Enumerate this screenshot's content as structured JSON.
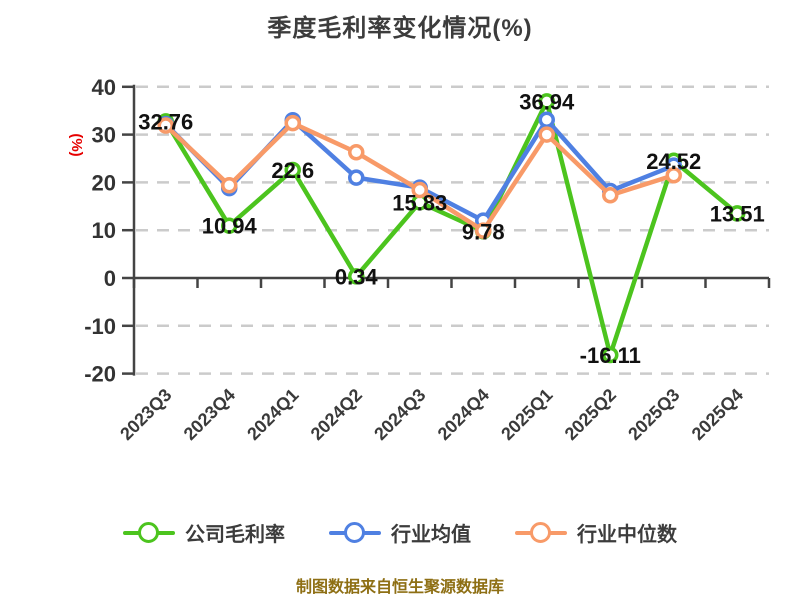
{
  "title": "季度毛利率变化情况(%)",
  "y_axis_unit_label": "(%)",
  "footer": "制图数据来自恒生聚源数据库",
  "colors": {
    "company": "#4cc41e",
    "industry_avg": "#4f80e2",
    "industry_median": "#f89a68",
    "grid": "#cbcbcb",
    "axis": "#444444",
    "tick_label": "#333333",
    "data_label": "#111111",
    "unit_label": "#e60000",
    "title": "#3c3c3c",
    "footer": "#8e6f14"
  },
  "chart_data": {
    "type": "line",
    "title": "季度毛利率变化情况(%)",
    "categories": [
      "2023Q3",
      "2023Q4",
      "2024Q1",
      "2024Q2",
      "2024Q3",
      "2024Q4",
      "2025Q1",
      "2025Q2",
      "2025Q3",
      "2025Q4"
    ],
    "y_ticks": [
      40,
      30,
      20,
      10,
      0,
      -10,
      -20
    ],
    "ylim": [
      -20,
      40
    ],
    "ylabel": "(%)",
    "grid": "horizontal-dashed",
    "legend_position": "bottom",
    "series": [
      {
        "name": "公司毛利率",
        "color": "#4cc41e",
        "labels_shown": true,
        "values": [
          32.76,
          10.94,
          22.6,
          0.34,
          15.83,
          9.78,
          36.94,
          -16.11,
          24.52,
          13.51
        ]
      },
      {
        "name": "行业均值",
        "color": "#4f80e2",
        "labels_shown": false,
        "values": [
          32.2,
          18.8,
          33.0,
          21.0,
          18.9,
          12.0,
          33.1,
          18.2,
          23.5,
          null
        ]
      },
      {
        "name": "行业中位数",
        "color": "#f89a68",
        "labels_shown": false,
        "values": [
          31.9,
          19.4,
          32.4,
          26.3,
          18.4,
          9.9,
          30.0,
          17.3,
          21.5,
          null
        ]
      }
    ]
  }
}
